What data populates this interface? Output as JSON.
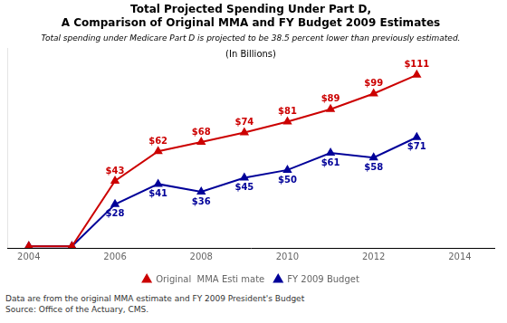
{
  "chart_data": {
    "type": "line",
    "title": "Total Projected Spending Under Part D,\nA Comparison of Original MMA and FY Budget 2009 Estimates",
    "subtitle": "Total spending under Medicare Part D is projected to be 38.5 percent lower than previously estimated.",
    "annotations": [
      "(In Billions)"
    ],
    "footnote": "Data are from the original MMA estimate and FY 2009 President's Budget\nSource: Office of the Actuary, CMS.",
    "x": [
      2004,
      2005,
      2006,
      2007,
      2008,
      2009,
      2010,
      2011,
      2012,
      2013
    ],
    "series": [
      {
        "name": "Original  MMA Esti mate",
        "color": "#cc0000",
        "marker": "triangle",
        "values": [
          1,
          1,
          43,
          62,
          68,
          74,
          81,
          89,
          99,
          111
        ],
        "value_labels": [
          null,
          null,
          "$43",
          "$62",
          "$68",
          "$74",
          "$81",
          "$89",
          "$99",
          "$111"
        ]
      },
      {
        "name": "FY 2009 Budget",
        "color": "#000099",
        "marker": "triangle",
        "values": [
          1,
          1,
          28,
          41,
          36,
          45,
          50,
          61,
          58,
          71
        ],
        "value_labels": [
          null,
          null,
          "$28",
          "$41",
          "$36",
          "$45",
          "$50",
          "$61",
          "$58",
          "$71"
        ]
      }
    ],
    "xlim": [
      2003.5,
      2014.8
    ],
    "ylim": [
      0,
      128
    ],
    "xticks": [
      2004,
      2006,
      2008,
      2010,
      2012,
      2014
    ],
    "grid": false,
    "legend": "bottom",
    "data_labels": true,
    "tick_labels": "x"
  }
}
